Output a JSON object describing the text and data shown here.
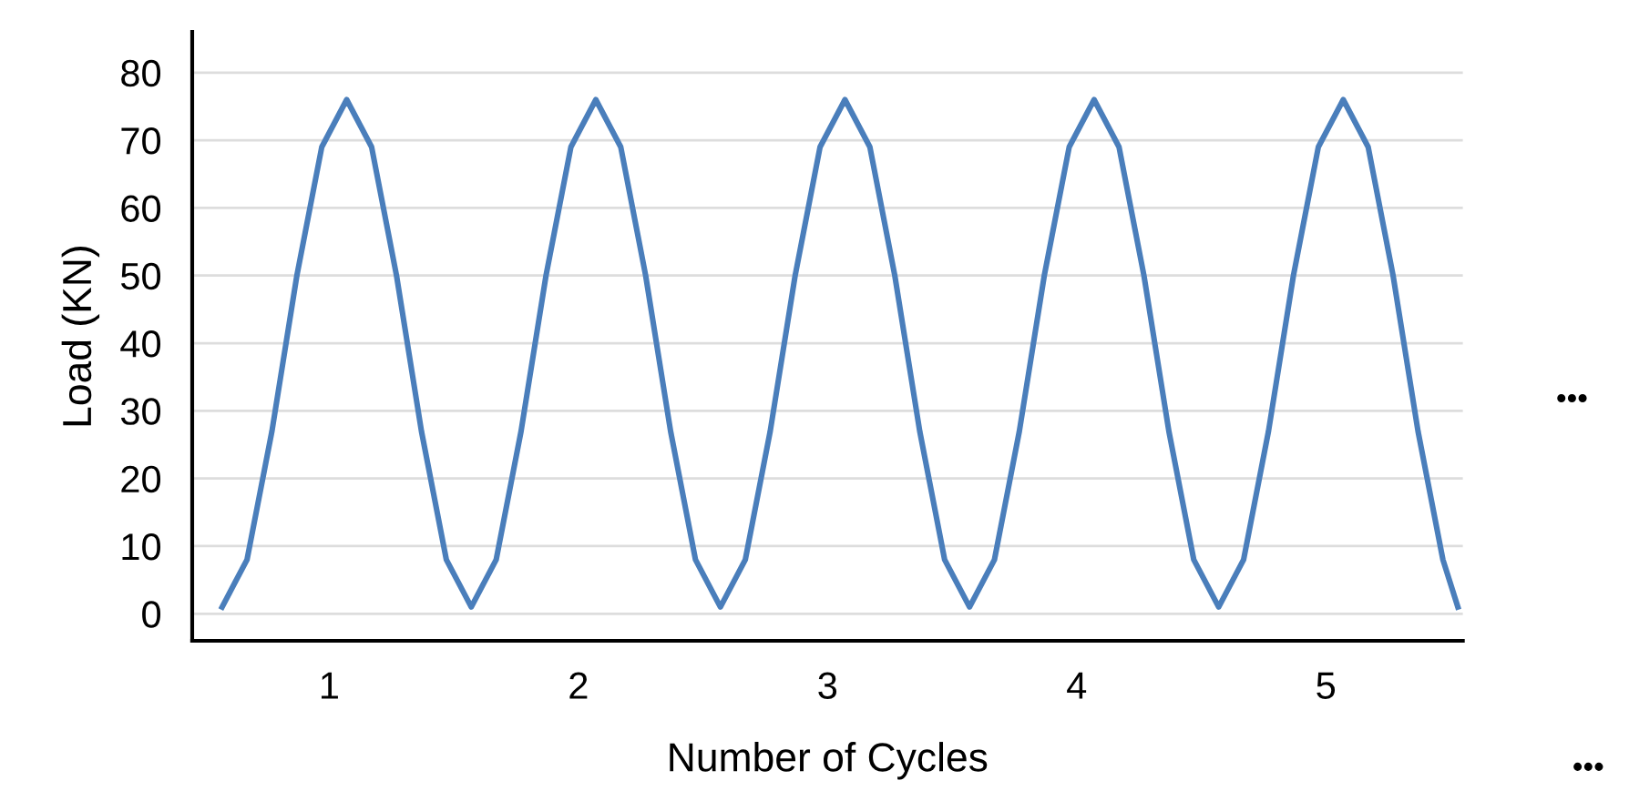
{
  "chart_data": {
    "type": "line",
    "xlabel": "Number of Cycles",
    "ylabel": "Load (KN)",
    "x": [
      0.57,
      0.67,
      0.77,
      0.87,
      0.97,
      1.07,
      1.17,
      1.27,
      1.37,
      1.47,
      1.57,
      1.67,
      1.77,
      1.87,
      1.97,
      2.07,
      2.17,
      2.27,
      2.37,
      2.47,
      2.57,
      2.67,
      2.77,
      2.87,
      2.97,
      3.07,
      3.17,
      3.27,
      3.37,
      3.47,
      3.57,
      3.67,
      3.77,
      3.87,
      3.97,
      4.07,
      4.17,
      4.27,
      4.37,
      4.47,
      4.57,
      4.67,
      4.77,
      4.87,
      4.97,
      5.07,
      5.17,
      5.27,
      5.37,
      5.47,
      5.53
    ],
    "series": [
      {
        "color": "#4a7ebb",
        "values": [
          1,
          8,
          27,
          50,
          69,
          76,
          69,
          50,
          27,
          8,
          1,
          8,
          27,
          50,
          69,
          76,
          69,
          50,
          27,
          8,
          1,
          8,
          27,
          50,
          69,
          76,
          69,
          50,
          27,
          8,
          1,
          8,
          27,
          50,
          69,
          76,
          69,
          50,
          27,
          8,
          1,
          8,
          27,
          50,
          69,
          76,
          69,
          50,
          27,
          8,
          1
        ]
      }
    ],
    "xlim": [
      0.45,
      5.55
    ],
    "xticks": [
      1,
      2,
      3,
      4,
      5
    ],
    "ylim": [
      -4,
      86
    ],
    "yticks": [
      0,
      10,
      20,
      30,
      40,
      50,
      60,
      70,
      80
    ],
    "grid": "y",
    "legend": false,
    "marker": "none",
    "line_style": "solid",
    "annotations": [
      "•••",
      "•••"
    ]
  }
}
